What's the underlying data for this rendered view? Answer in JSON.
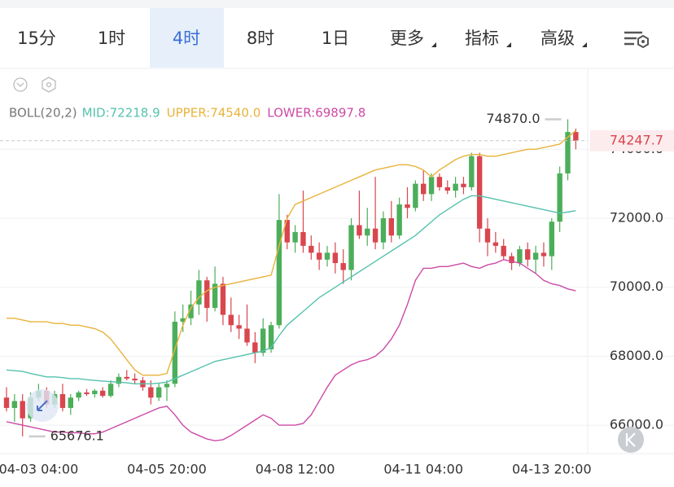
{
  "tabs": [
    "15分",
    "1时",
    "4时",
    "8时",
    "1日",
    "更多",
    "指标",
    "高级"
  ],
  "active_tab_index": 2,
  "dropdown_tabs": [
    5,
    6,
    7
  ],
  "chart_data": {
    "type": "candlestick",
    "indicator": "BOLL(20,2)",
    "categories": [
      null,
      null,
      null,
      null,
      "04-03 04:00",
      null,
      null,
      null,
      null,
      null,
      null,
      null,
      null,
      null,
      null,
      null,
      null,
      null,
      null,
      null,
      "04-05 20:00",
      null,
      null,
      null,
      null,
      null,
      null,
      null,
      null,
      null,
      null,
      null,
      null,
      null,
      null,
      null,
      "04-08 12:00",
      null,
      null,
      null,
      null,
      null,
      null,
      null,
      null,
      null,
      null,
      null,
      null,
      null,
      null,
      null,
      "04-11 04:00",
      null,
      null,
      null,
      null,
      null,
      null,
      null,
      null,
      null,
      null,
      null,
      null,
      null,
      null,
      null,
      "04-13 20:00",
      null,
      null,
      null
    ],
    "ohlc": [
      [
        66800,
        67100,
        66400,
        66500
      ],
      [
        66500,
        66900,
        66100,
        66700
      ],
      [
        66700,
        66900,
        65676.1,
        66200
      ],
      [
        66200,
        66950,
        66100,
        66800
      ],
      [
        66800,
        67200,
        66700,
        67000
      ],
      [
        67000,
        67100,
        66500,
        66600
      ],
      [
        66600,
        67000,
        66500,
        66900
      ],
      [
        66900,
        67200,
        66400,
        66500
      ],
      [
        66500,
        66900,
        66300,
        66800
      ],
      [
        66800,
        67000,
        66700,
        66950
      ],
      [
        66950,
        67050,
        66850,
        66900
      ],
      [
        66900,
        67050,
        66800,
        67000
      ],
      [
        67000,
        67100,
        66800,
        66850
      ],
      [
        66850,
        67300,
        66800,
        67200
      ],
      [
        67200,
        67500,
        67100,
        67400
      ],
      [
        67400,
        67600,
        67300,
        67350
      ],
      [
        67350,
        67500,
        67200,
        67300
      ],
      [
        67300,
        67400,
        67000,
        67100
      ],
      [
        67100,
        67300,
        66600,
        66800
      ],
      [
        66800,
        67200,
        66700,
        67100
      ],
      [
        67100,
        67300,
        66700,
        67200
      ],
      [
        67200,
        69300,
        67100,
        69000
      ],
      [
        69000,
        69500,
        68700,
        69100
      ],
      [
        69100,
        69900,
        68900,
        69500
      ],
      [
        69500,
        70500,
        69200,
        70200
      ],
      [
        70200,
        70300,
        69000,
        69400
      ],
      [
        69400,
        70600,
        69300,
        70100
      ],
      [
        70100,
        70300,
        68900,
        69200
      ],
      [
        69200,
        69700,
        68700,
        68900
      ],
      [
        68900,
        69200,
        68500,
        68800
      ],
      [
        68800,
        69500,
        68300,
        68400
      ],
      [
        68400,
        68700,
        67800,
        68100
      ],
      [
        68100,
        69100,
        68000,
        68800
      ],
      [
        68200,
        69000,
        68100,
        68900
      ],
      [
        68900,
        72700,
        68800,
        71950
      ],
      [
        71950,
        72100,
        71100,
        71300
      ],
      [
        71300,
        71800,
        71000,
        71600
      ],
      [
        71600,
        72800,
        71000,
        71200
      ],
      [
        71200,
        71500,
        70800,
        71000
      ],
      [
        71000,
        71300,
        70500,
        70800
      ],
      [
        70800,
        71200,
        70600,
        71000
      ],
      [
        71000,
        71300,
        70400,
        70700
      ],
      [
        70700,
        71100,
        70100,
        70500
      ],
      [
        70500,
        72000,
        70200,
        71800
      ],
      [
        71800,
        72800,
        71400,
        71500
      ],
      [
        71500,
        72300,
        71200,
        71700
      ],
      [
        71700,
        73200,
        71100,
        71300
      ],
      [
        71300,
        72200,
        71100,
        72000
      ],
      [
        72000,
        72500,
        71300,
        71500
      ],
      [
        71500,
        72600,
        71400,
        72400
      ],
      [
        72400,
        72900,
        72000,
        72300
      ],
      [
        72300,
        73100,
        72200,
        73000
      ],
      [
        73000,
        73400,
        72500,
        72700
      ],
      [
        72700,
        73300,
        72500,
        73200
      ],
      [
        73200,
        73300,
        72800,
        72900
      ],
      [
        72900,
        73100,
        72700,
        72800
      ],
      [
        72800,
        73200,
        72600,
        73000
      ],
      [
        73000,
        73200,
        72700,
        72900
      ],
      [
        72900,
        73900,
        72800,
        73800
      ],
      [
        73800,
        73900,
        71300,
        71700
      ],
      [
        71700,
        72000,
        70900,
        71300
      ],
      [
        71300,
        71600,
        71000,
        71200
      ],
      [
        71200,
        71400,
        70800,
        70900
      ],
      [
        70900,
        71000,
        70500,
        70700
      ],
      [
        70700,
        71200,
        70600,
        71100
      ],
      [
        71100,
        71300,
        70600,
        70800
      ],
      [
        70800,
        71200,
        70400,
        71000
      ],
      [
        71000,
        71300,
        70600,
        70900
      ],
      [
        70900,
        72000,
        70500,
        71900
      ],
      [
        71900,
        73500,
        71600,
        73300
      ],
      [
        73300,
        74870,
        73100,
        74500
      ],
      [
        74500,
        74600,
        74000,
        74247.7
      ]
    ],
    "up_color": "#4cae5a",
    "down_color": "#d9464e",
    "series": [
      {
        "name": "MID:72218.9",
        "color": "#55c2ad",
        "values": [
          67600,
          67580,
          67560,
          67500,
          67450,
          67400,
          67400,
          67380,
          67350,
          67350,
          67320,
          67300,
          67280,
          67260,
          67250,
          67230,
          67200,
          67200,
          67200,
          67220,
          67250,
          67350,
          67450,
          67550,
          67650,
          67750,
          67850,
          67900,
          67950,
          68000,
          68050,
          68100,
          68150,
          68250,
          68600,
          68900,
          69100,
          69300,
          69500,
          69700,
          69850,
          70000,
          70150,
          70300,
          70450,
          70600,
          70750,
          70900,
          71050,
          71200,
          71350,
          71500,
          71700,
          71900,
          72100,
          72250,
          72400,
          72550,
          72650,
          72650,
          72600,
          72550,
          72500,
          72450,
          72400,
          72350,
          72300,
          72250,
          72200,
          72150,
          72180,
          72218.9
        ]
      },
      {
        "name": "UPPER:74540.0",
        "color": "#e8b33a",
        "values": [
          69100,
          69100,
          69050,
          69000,
          69000,
          69000,
          68950,
          68950,
          68900,
          68900,
          68850,
          68800,
          68700,
          68500,
          68200,
          67900,
          67600,
          67450,
          67450,
          67450,
          67500,
          68200,
          68900,
          69400,
          69700,
          69900,
          70000,
          70050,
          70100,
          70150,
          70200,
          70250,
          70300,
          70350,
          71200,
          72000,
          72400,
          72500,
          72600,
          72700,
          72800,
          72900,
          73000,
          73100,
          73200,
          73300,
          73400,
          73450,
          73500,
          73550,
          73550,
          73500,
          73400,
          73200,
          73400,
          73550,
          73700,
          73800,
          73850,
          73850,
          73800,
          73800,
          73850,
          73900,
          73950,
          74000,
          74000,
          74050,
          74100,
          74150,
          74350,
          74540
        ]
      },
      {
        "name": "LOWER:69897.8",
        "color": "#cc4aa6",
        "values": [
          66100,
          66050,
          66000,
          65950,
          65900,
          65850,
          65800,
          65800,
          65780,
          65780,
          65750,
          65750,
          65800,
          65900,
          66000,
          66100,
          66200,
          66300,
          66400,
          66500,
          66550,
          66300,
          66000,
          65800,
          65700,
          65600,
          65550,
          65580,
          65700,
          65850,
          66000,
          66150,
          66300,
          66200,
          66000,
          66000,
          66000,
          66050,
          66300,
          66700,
          67100,
          67450,
          67600,
          67750,
          67850,
          67900,
          68000,
          68200,
          68500,
          68900,
          69500,
          70200,
          70550,
          70550,
          70600,
          70600,
          70650,
          70700,
          70600,
          70550,
          70650,
          70700,
          70800,
          70750,
          70700,
          70550,
          70400,
          70200,
          70100,
          70050,
          69950,
          69897.8
        ]
      }
    ],
    "ylim": [
      65176,
      76321
    ],
    "yticks": [
      {
        "value": 66000,
        "label": "66000.0"
      },
      {
        "value": 68000,
        "label": "68000.0"
      },
      {
        "value": 70000,
        "label": "70000.0"
      },
      {
        "value": 72000,
        "label": "72000.0"
      },
      {
        "value": 74000,
        "label": "74000.0"
      }
    ],
    "grid": true,
    "high_annotation": {
      "value": 74870,
      "label": "74870.0"
    },
    "low_annotation": 65676.1,
    "last_price": 74247.7
  }
}
